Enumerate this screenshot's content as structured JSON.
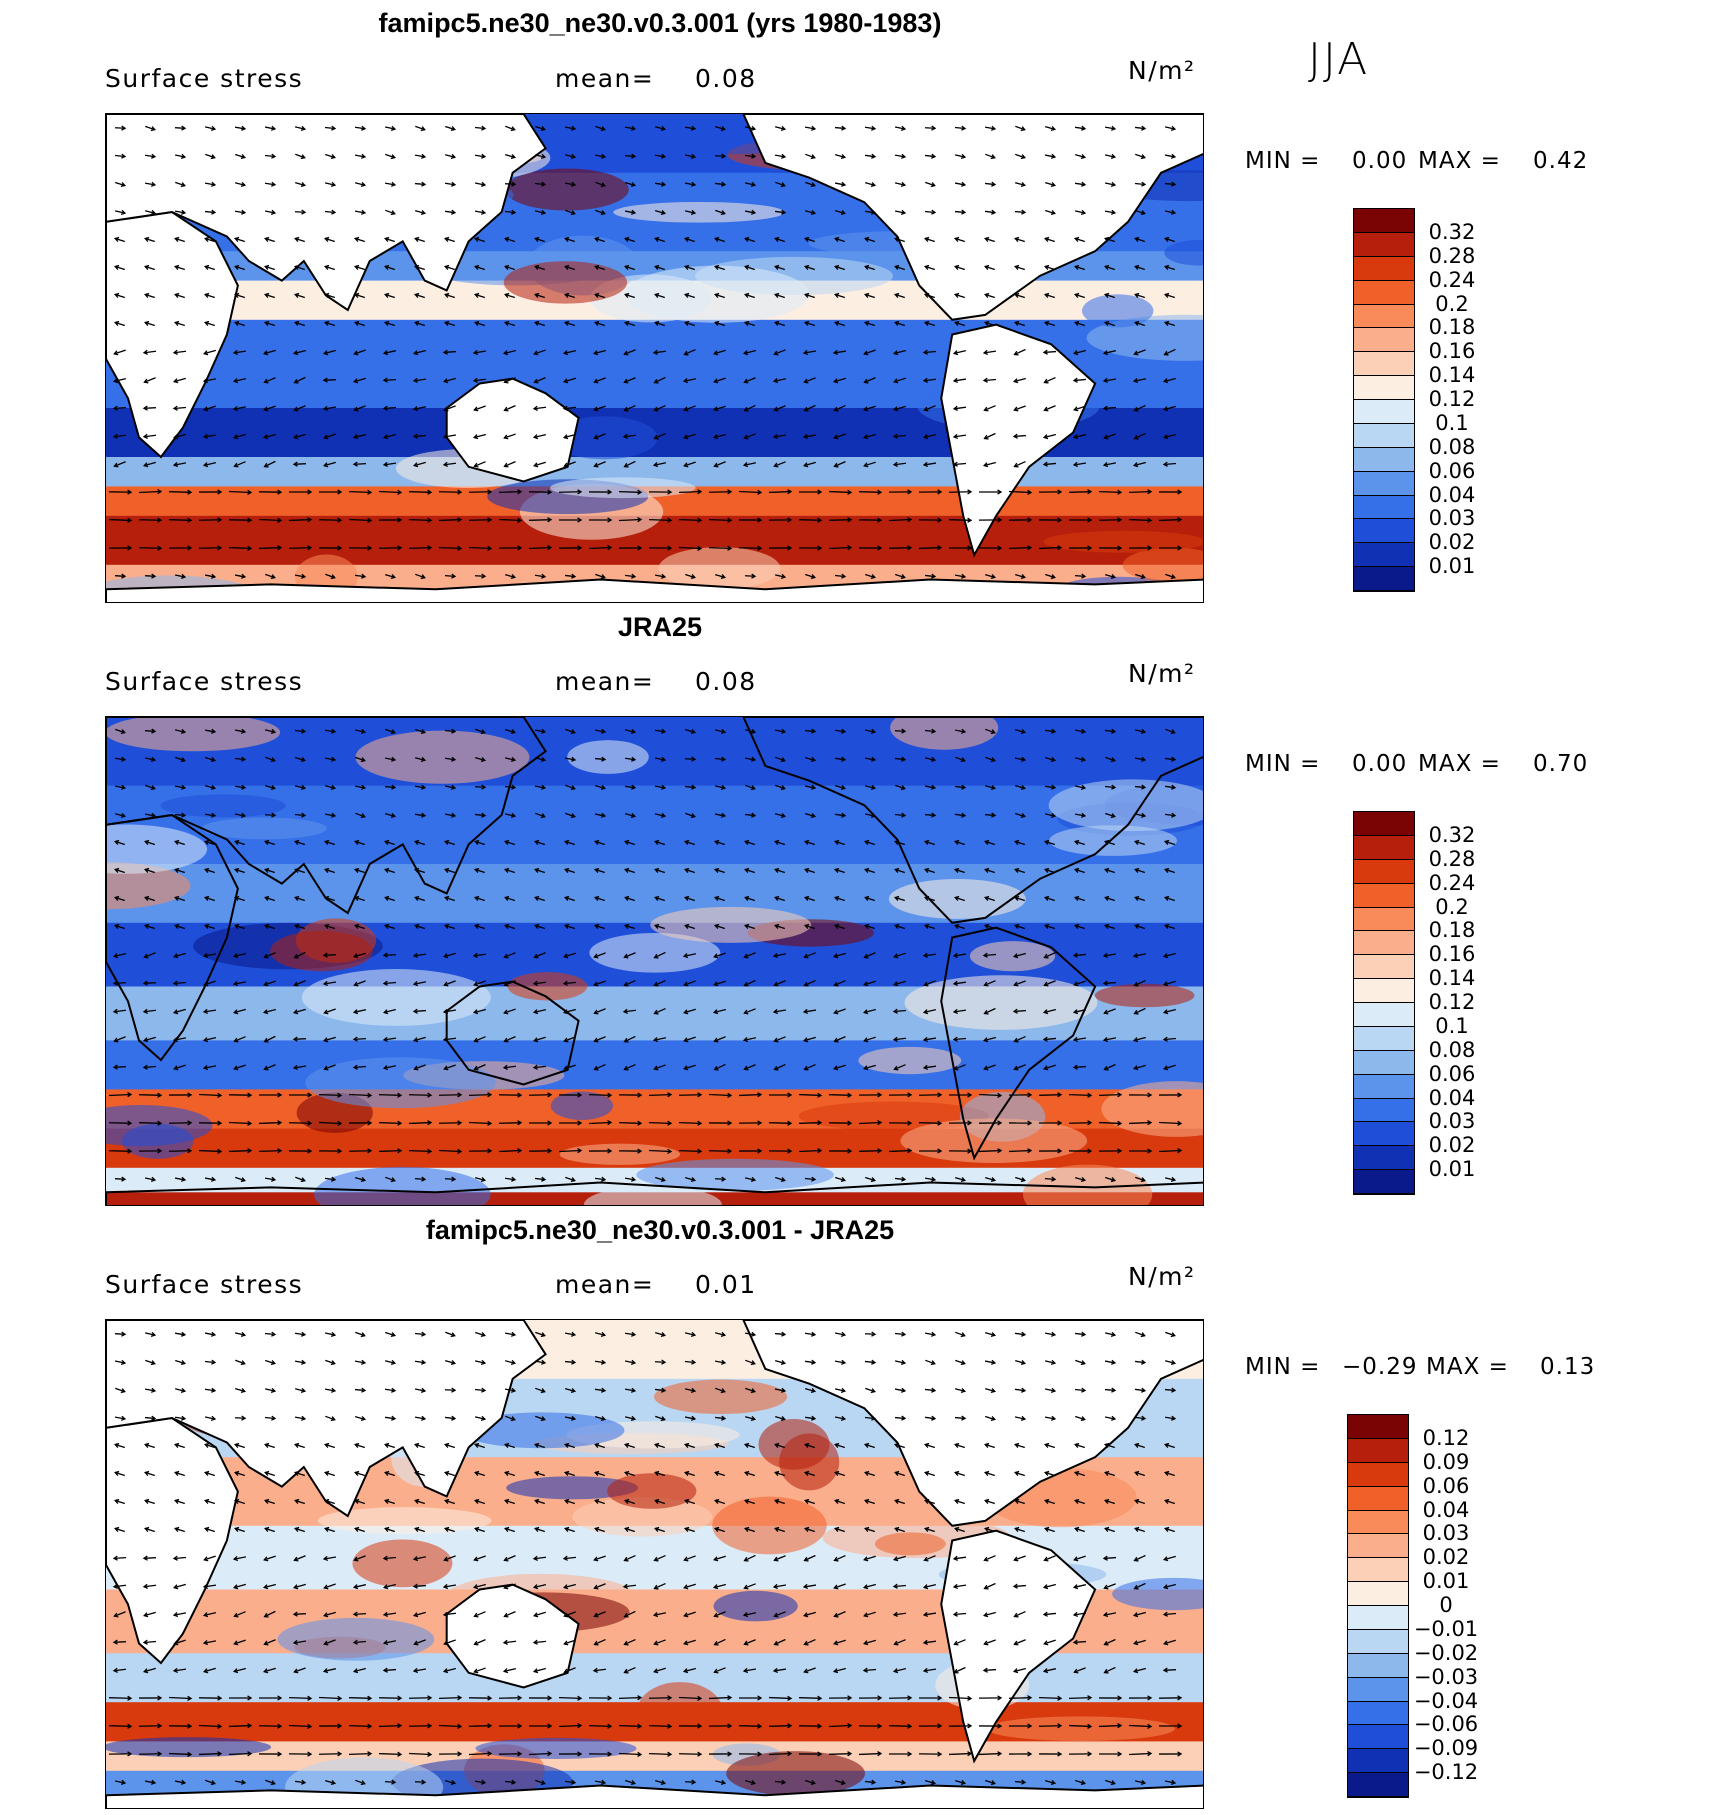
{
  "season": "JJA",
  "panels": [
    {
      "title": "famipc5.ne30_ne30.v0.3.001 (yrs 1980-1983)",
      "variable": "Surface stress",
      "mean_label": "mean=",
      "mean_value": "0.08",
      "units": "N/m²",
      "min_label": "MIN =",
      "min_value": "0.00",
      "max_label": "MAX =",
      "max_value": "0.42",
      "colorbar_labels": [
        "0.32",
        "0.28",
        "0.24",
        "0.2",
        "0.18",
        "0.16",
        "0.14",
        "0.12",
        "0.1",
        "0.08",
        "0.06",
        "0.04",
        "0.03",
        "0.02",
        "0.01"
      ],
      "colorbar_colors": [
        "#7a0403",
        "#b51f0b",
        "#d83a0e",
        "#f0612a",
        "#f98a5a",
        "#fbae8c",
        "#fcd0b6",
        "#fdeee2",
        "#dcebf8",
        "#b9d6f2",
        "#8cb8ec",
        "#5c94ec",
        "#3570e8",
        "#1f4fd8",
        "#1131b4",
        "#0a1a8a"
      ]
    },
    {
      "title": "JRA25",
      "variable": "Surface stress",
      "mean_label": "mean=",
      "mean_value": "0.08",
      "units": "N/m²",
      "min_label": "MIN =",
      "min_value": "0.00",
      "max_label": "MAX =",
      "max_value": "0.70",
      "colorbar_labels": [
        "0.32",
        "0.28",
        "0.24",
        "0.2",
        "0.18",
        "0.16",
        "0.14",
        "0.12",
        "0.1",
        "0.08",
        "0.06",
        "0.04",
        "0.03",
        "0.02",
        "0.01"
      ],
      "colorbar_colors": [
        "#7a0403",
        "#b51f0b",
        "#d83a0e",
        "#f0612a",
        "#f98a5a",
        "#fbae8c",
        "#fcd0b6",
        "#fdeee2",
        "#dcebf8",
        "#b9d6f2",
        "#8cb8ec",
        "#5c94ec",
        "#3570e8",
        "#1f4fd8",
        "#1131b4",
        "#0a1a8a"
      ]
    },
    {
      "title": "famipc5.ne30_ne30.v0.3.001 - JRA25",
      "variable": "Surface stress",
      "mean_label": "mean=",
      "mean_value": "0.01",
      "units": "N/m²",
      "min_label": "MIN =",
      "min_value": "−0.29",
      "max_label": "MAX =",
      "max_value": "0.13",
      "colorbar_labels": [
        "0.12",
        "0.09",
        "0.06",
        "0.04",
        "0.03",
        "0.02",
        "0.01",
        "0",
        "−0.01",
        "−0.02",
        "−0.03",
        "−0.04",
        "−0.06",
        "−0.09",
        "−0.12"
      ],
      "colorbar_colors": [
        "#7a0403",
        "#b51f0b",
        "#d83a0e",
        "#f0612a",
        "#f98a5a",
        "#fbae8c",
        "#fcd0b6",
        "#fdeee2",
        "#dcebf8",
        "#b9d6f2",
        "#8cb8ec",
        "#5c94ec",
        "#3570e8",
        "#1f4fd8",
        "#1131b4",
        "#0a1a8a"
      ]
    }
  ]
}
